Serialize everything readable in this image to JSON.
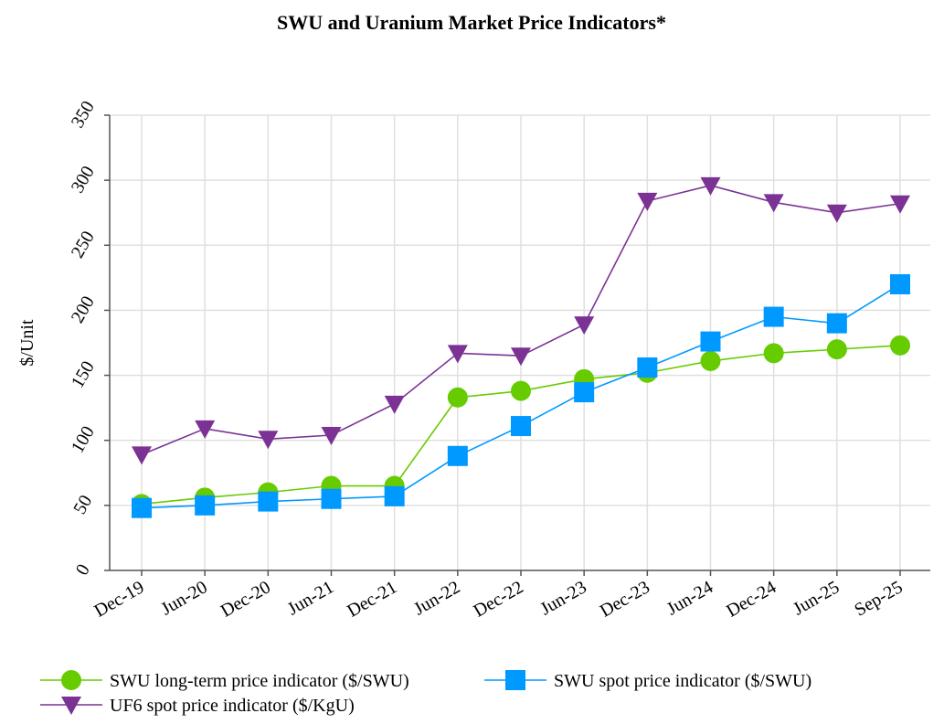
{
  "chart_data": {
    "type": "line",
    "title": "SWU and Uranium Market Price Indicators*",
    "xlabel": "",
    "ylabel": "$/Unit",
    "categories": [
      "Dec-19",
      "Jun-20",
      "Dec-20",
      "Jun-21",
      "Dec-21",
      "Jun-22",
      "Dec-22",
      "Jun-23",
      "Dec-23",
      "Jun-24",
      "Dec-24",
      "Jun-25",
      "Sep-25"
    ],
    "ylim": [
      0,
      350
    ],
    "yticks": [
      0,
      50,
      100,
      150,
      200,
      250,
      300,
      350
    ],
    "grid": true,
    "legend_position": "bottom",
    "series": [
      {
        "name": "SWU long-term price indicator ($/SWU)",
        "color": "#66cc00",
        "marker": "circle",
        "values": [
          51,
          56,
          60,
          65,
          65,
          133,
          138,
          147,
          152,
          161,
          167,
          170,
          173
        ]
      },
      {
        "name": "SWU spot price indicator ($/SWU)",
        "color": "#0099ff",
        "marker": "square",
        "values": [
          48,
          50,
          53,
          55,
          57,
          88,
          111,
          137,
          156,
          176,
          195,
          190,
          220
        ]
      },
      {
        "name": "UF6 spot price indicator ($/KgU)",
        "color": "#7b3294",
        "marker": "triangle-down",
        "values": [
          89,
          109,
          101,
          104,
          128,
          167,
          165,
          189,
          284,
          296,
          283,
          275,
          282
        ]
      }
    ]
  }
}
